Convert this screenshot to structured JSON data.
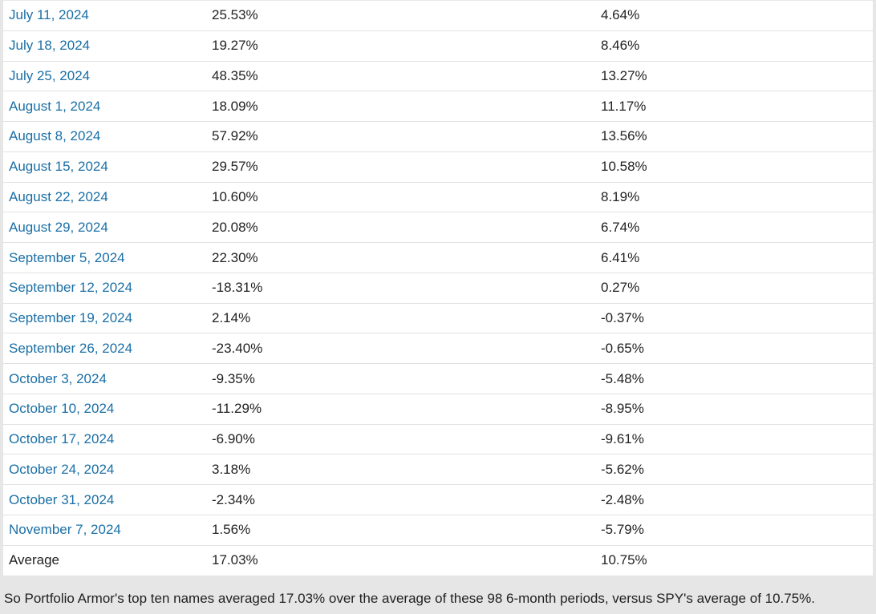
{
  "table": {
    "rows": [
      {
        "date": "July 11, 2024",
        "top_ten": "25.53%",
        "spy": "4.64%"
      },
      {
        "date": "July 18, 2024",
        "top_ten": "19.27%",
        "spy": "8.46%"
      },
      {
        "date": "July 25, 2024",
        "top_ten": "48.35%",
        "spy": "13.27%"
      },
      {
        "date": "August 1, 2024",
        "top_ten": "18.09%",
        "spy": "11.17%"
      },
      {
        "date": "August 8, 2024",
        "top_ten": "57.92%",
        "spy": "13.56%"
      },
      {
        "date": "August 15, 2024",
        "top_ten": "29.57%",
        "spy": "10.58%"
      },
      {
        "date": "August 22, 2024",
        "top_ten": "10.60%",
        "spy": "8.19%"
      },
      {
        "date": "August 29, 2024",
        "top_ten": "20.08%",
        "spy": "6.74%"
      },
      {
        "date": "September 5, 2024",
        "top_ten": "22.30%",
        "spy": "6.41%"
      },
      {
        "date": "September 12, 2024",
        "top_ten": "-18.31%",
        "spy": "0.27%"
      },
      {
        "date": "September 19, 2024",
        "top_ten": "2.14%",
        "spy": "-0.37%"
      },
      {
        "date": "September 26, 2024",
        "top_ten": "-23.40%",
        "spy": "-0.65%"
      },
      {
        "date": "October 3, 2024",
        "top_ten": "-9.35%",
        "spy": "-5.48%"
      },
      {
        "date": "October 10, 2024",
        "top_ten": "-11.29%",
        "spy": "-8.95%"
      },
      {
        "date": "October 17, 2024",
        "top_ten": "-6.90%",
        "spy": "-9.61%"
      },
      {
        "date": "October 24, 2024",
        "top_ten": "3.18%",
        "spy": "-5.62%"
      },
      {
        "date": "October 31, 2024",
        "top_ten": "-2.34%",
        "spy": "-2.48%"
      },
      {
        "date": "November 7, 2024",
        "top_ten": "1.56%",
        "spy": "-5.79%"
      }
    ],
    "average": {
      "label": "Average",
      "top_ten": "17.03%",
      "spy": "10.75%"
    }
  },
  "summary": "So Portfolio Armor's top ten names averaged 17.03% over the average of these 98 6-month periods, versus SPY's average of 10.75%.",
  "colors": {
    "link": "#1a6fa6",
    "text": "#222222",
    "background": "#e6e6e6",
    "table_background": "#ffffff",
    "row_border": "#e2e2e2"
  }
}
